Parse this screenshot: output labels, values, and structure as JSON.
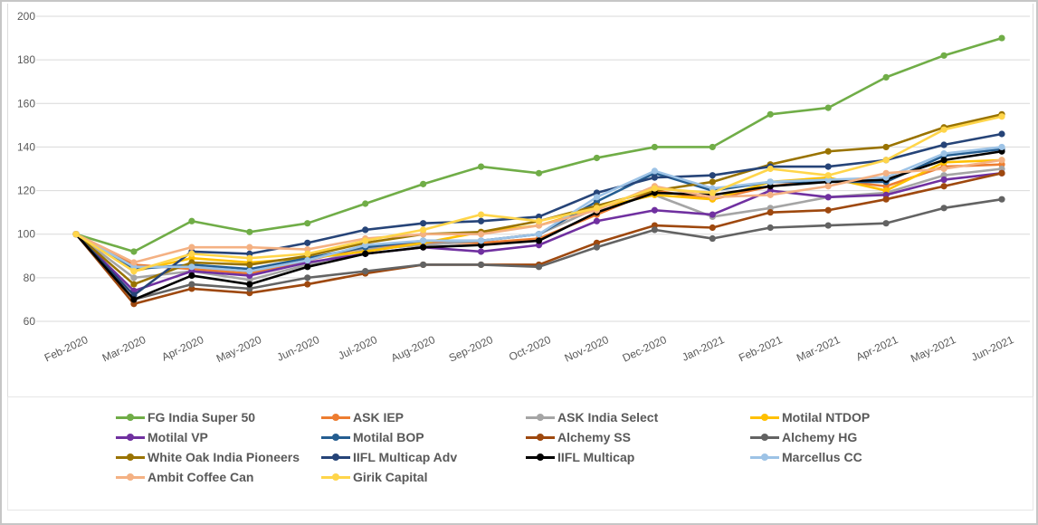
{
  "chart_data": {
    "type": "line",
    "title": "",
    "xlabel": "",
    "ylabel": "",
    "ylim": [
      60,
      200
    ],
    "yticks": [
      60,
      80,
      100,
      120,
      140,
      160,
      180,
      200
    ],
    "grid": true,
    "legend_position": "bottom",
    "categories": [
      "Feb-2020",
      "Mar-2020",
      "Apr-2020",
      "May-2020",
      "Jun-2020",
      "Jul-2020",
      "Aug-2020",
      "Sep-2020",
      "Oct-2020",
      "Nov-2020",
      "Dec-2020",
      "Jan-2021",
      "Feb-2021",
      "Mar-2021",
      "Apr-2021",
      "May-2021",
      "Jun-2021"
    ],
    "series": [
      {
        "name": "FG India Super 50",
        "color": "#70ad47",
        "values": [
          100,
          92,
          106,
          101,
          105,
          114,
          123,
          131,
          128,
          135,
          140,
          140,
          155,
          158,
          172,
          182,
          190
        ]
      },
      {
        "name": "ASK IEP",
        "color": "#ed7d31",
        "values": [
          100,
          86,
          84,
          82,
          88,
          94,
          96,
          96,
          98,
          109,
          120,
          116,
          122,
          125,
          122,
          131,
          132
        ]
      },
      {
        "name": "ASK India Select",
        "color": "#a5a5a5",
        "values": [
          100,
          80,
          83,
          79,
          86,
          93,
          95,
          97,
          100,
          112,
          118,
          108,
          112,
          117,
          119,
          127,
          130
        ]
      },
      {
        "name": "Motilal NTDOP",
        "color": "#ffc000",
        "values": [
          100,
          83,
          89,
          87,
          89,
          92,
          96,
          101,
          104,
          112,
          118,
          116,
          124,
          126,
          120,
          133,
          134
        ]
      },
      {
        "name": "Motilal VP",
        "color": "#7030a0",
        "values": [
          100,
          74,
          83,
          81,
          87,
          91,
          94,
          92,
          95,
          106,
          111,
          109,
          120,
          117,
          118,
          125,
          128
        ]
      },
      {
        "name": "Motilal BOP",
        "color": "#255e91",
        "values": [
          100,
          84,
          86,
          84,
          89,
          94,
          97,
          97,
          100,
          115,
          128,
          120,
          124,
          124,
          124,
          136,
          139
        ]
      },
      {
        "name": "Alchemy SS",
        "color": "#9e480e",
        "values": [
          100,
          68,
          75,
          73,
          77,
          82,
          86,
          86,
          86,
          96,
          104,
          103,
          110,
          111,
          116,
          122,
          128
        ]
      },
      {
        "name": "Alchemy HG",
        "color": "#636363",
        "values": [
          100,
          70,
          77,
          75,
          80,
          83,
          86,
          86,
          85,
          94,
          102,
          98,
          103,
          104,
          105,
          112,
          116
        ]
      },
      {
        "name": "White Oak India Pioneers",
        "color": "#997300",
        "values": [
          100,
          77,
          87,
          86,
          90,
          96,
          100,
          101,
          106,
          113,
          120,
          124,
          132,
          138,
          140,
          149,
          155
        ]
      },
      {
        "name": "IIFL Multicap Adv",
        "color": "#264478",
        "values": [
          100,
          72,
          92,
          91,
          96,
          102,
          105,
          106,
          108,
          119,
          126,
          127,
          131,
          131,
          134,
          141,
          146
        ]
      },
      {
        "name": "IIFL Multicap",
        "color": "#000000",
        "values": [
          100,
          70,
          81,
          77,
          85,
          91,
          94,
          95,
          97,
          110,
          119,
          118,
          122,
          124,
          125,
          134,
          138
        ]
      },
      {
        "name": "Marcellus CC",
        "color": "#9dc3e6",
        "values": [
          100,
          85,
          85,
          83,
          88,
          95,
          97,
          97,
          100,
          117,
          129,
          121,
          124,
          125,
          126,
          137,
          140
        ]
      },
      {
        "name": "Ambit Coffee Can",
        "color": "#f4b183",
        "values": [
          100,
          87,
          94,
          94,
          93,
          98,
          100,
          100,
          104,
          111,
          122,
          117,
          118,
          122,
          128,
          130,
          134
        ]
      },
      {
        "name": "Girik Capital",
        "color": "#ffd54a",
        "values": [
          100,
          83,
          91,
          89,
          91,
          97,
          102,
          109,
          106,
          112,
          121,
          119,
          130,
          127,
          134,
          148,
          154
        ]
      }
    ]
  }
}
